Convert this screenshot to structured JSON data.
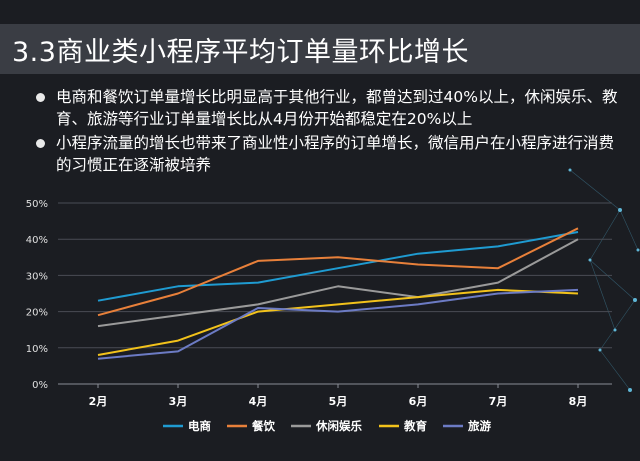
{
  "slide": {
    "title": "3.3商业类小程序平均订单量环比增长",
    "bullets": [
      "电商和餐饮订单量增长比明显高于其他行业，都曾达到过40%以上，休闲娱乐、教育、旅游等行业订单量增长比从4月份开始都稳定在20%以上",
      "小程序流量的增长也带来了商业性小程序的订单增长，微信用户在小程序进行消费的习惯正在逐渐被培养"
    ]
  },
  "chart_data": {
    "type": "line",
    "categories": [
      "2月",
      "3月",
      "4月",
      "5月",
      "6月",
      "7月",
      "8月"
    ],
    "ylim": [
      0,
      50
    ],
    "yticks": [
      "0%",
      "10%",
      "20%",
      "30%",
      "40%",
      "50%"
    ],
    "grid": true,
    "legend_position": "bottom",
    "series": [
      {
        "name": "电商",
        "color": "#1f9bd1",
        "values": [
          23,
          27,
          28,
          32,
          36,
          38,
          42
        ]
      },
      {
        "name": "餐饮",
        "color": "#e8803a",
        "values": [
          19,
          25,
          34,
          35,
          33,
          32,
          43
        ]
      },
      {
        "name": "休闲娱乐",
        "color": "#9a9a9a",
        "values": [
          16,
          19,
          22,
          27,
          24,
          28,
          40
        ]
      },
      {
        "name": "教育",
        "color": "#f2c21b",
        "values": [
          8,
          12,
          20,
          22,
          24,
          26,
          25
        ]
      },
      {
        "name": "旅游",
        "color": "#6c7bc4",
        "values": [
          7,
          9,
          21,
          20,
          22,
          25,
          26
        ]
      }
    ]
  }
}
